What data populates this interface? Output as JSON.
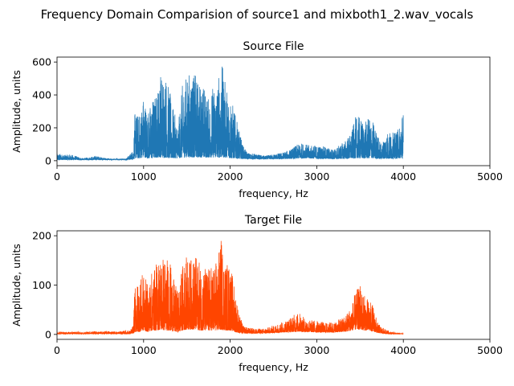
{
  "figure": {
    "suptitle": "Frequency Domain Comparision of source1 and mixboth1_2.wav_vocals"
  },
  "chart_data": [
    {
      "type": "line",
      "title": "Source File",
      "xlabel": "frequency, Hz",
      "ylabel": "Amplitude, units",
      "xlim": [
        0,
        5000
      ],
      "ylim": [
        -30,
        630
      ],
      "xticks": [
        0,
        1000,
        2000,
        3000,
        4000,
        5000
      ],
      "yticks": [
        0,
        200,
        400,
        600
      ],
      "grid": false,
      "color": "#1f77b4",
      "note_signal": "dense spectrum from 0 to 4000 Hz",
      "envelope": {
        "x": [
          0,
          20,
          100,
          150,
          300,
          450,
          600,
          800,
          850,
          880,
          900,
          950,
          1000,
          1050,
          1100,
          1150,
          1200,
          1250,
          1300,
          1350,
          1400,
          1450,
          1500,
          1550,
          1600,
          1650,
          1700,
          1750,
          1800,
          1850,
          1900,
          1950,
          2000,
          2050,
          2100,
          2150,
          2200,
          2300,
          2400,
          2500,
          2600,
          2700,
          2750,
          2800,
          2850,
          2900,
          3000,
          3100,
          3200,
          3300,
          3350,
          3400,
          3450,
          3500,
          3550,
          3600,
          3650,
          3700,
          3750,
          3800,
          3850,
          3900,
          3950,
          3980,
          4000
        ],
        "peak": [
          40,
          45,
          35,
          40,
          15,
          30,
          12,
          15,
          45,
          70,
          300,
          280,
          410,
          300,
          380,
          420,
          550,
          550,
          430,
          300,
          220,
          470,
          520,
          560,
          520,
          480,
          460,
          380,
          460,
          490,
          605,
          460,
          420,
          300,
          190,
          90,
          50,
          40,
          30,
          40,
          50,
          70,
          90,
          105,
          110,
          95,
          95,
          85,
          70,
          110,
          140,
          170,
          270,
          265,
          230,
          260,
          240,
          165,
          95,
          185,
          175,
          170,
          200,
          300,
          310
        ],
        "floor": [
          5,
          5,
          5,
          5,
          5,
          5,
          5,
          5,
          8,
          10,
          15,
          15,
          20,
          15,
          15,
          20,
          20,
          20,
          15,
          15,
          15,
          20,
          20,
          20,
          20,
          20,
          20,
          20,
          20,
          20,
          20,
          20,
          15,
          15,
          12,
          12,
          10,
          10,
          10,
          10,
          10,
          12,
          12,
          15,
          15,
          15,
          12,
          12,
          10,
          12,
          12,
          15,
          15,
          15,
          15,
          15,
          15,
          12,
          12,
          12,
          12,
          12,
          15,
          15,
          15
        ]
      }
    },
    {
      "type": "line",
      "title": "Target File",
      "xlabel": "frequency, Hz",
      "ylabel": "Amplitude, units",
      "xlim": [
        0,
        5000
      ],
      "ylim": [
        -10,
        210
      ],
      "xticks": [
        0,
        1000,
        2000,
        3000,
        4000,
        5000
      ],
      "yticks": [
        0,
        100,
        200
      ],
      "grid": false,
      "color": "#ff4500",
      "envelope": {
        "x": [
          0,
          100,
          200,
          300,
          400,
          500,
          600,
          700,
          800,
          850,
          880,
          900,
          950,
          1000,
          1050,
          1100,
          1150,
          1200,
          1250,
          1300,
          1350,
          1400,
          1450,
          1500,
          1550,
          1600,
          1650,
          1700,
          1750,
          1800,
          1850,
          1900,
          1950,
          2000,
          2050,
          2100,
          2150,
          2200,
          2300,
          2400,
          2500,
          2600,
          2700,
          2750,
          2800,
          2850,
          2900,
          3000,
          3100,
          3200,
          3300,
          3350,
          3400,
          3450,
          3500,
          3550,
          3600,
          3650,
          3700,
          3750,
          3800,
          3850,
          3900,
          3950,
          4000
        ],
        "peak": [
          6,
          5,
          6,
          5,
          7,
          6,
          7,
          6,
          8,
          8,
          20,
          100,
          110,
          125,
          100,
          130,
          145,
          168,
          160,
          152,
          110,
          85,
          145,
          158,
          155,
          160,
          145,
          140,
          135,
          145,
          150,
          198,
          150,
          145,
          100,
          45,
          18,
          14,
          12,
          12,
          18,
          25,
          35,
          42,
          44,
          35,
          30,
          28,
          24,
          25,
          35,
          45,
          60,
          88,
          100,
          80,
          70,
          60,
          25,
          15,
          10,
          6,
          4,
          3,
          2
        ],
        "floor": [
          1,
          1,
          1,
          1,
          1,
          1,
          1,
          1,
          1,
          1,
          2,
          5,
          5,
          8,
          5,
          8,
          8,
          10,
          8,
          8,
          6,
          5,
          8,
          10,
          10,
          10,
          8,
          8,
          8,
          8,
          8,
          10,
          8,
          8,
          5,
          3,
          2,
          2,
          2,
          2,
          3,
          4,
          5,
          5,
          6,
          5,
          5,
          4,
          4,
          4,
          5,
          6,
          8,
          10,
          10,
          8,
          8,
          6,
          3,
          2,
          1,
          1,
          1,
          1,
          1
        ]
      }
    }
  ]
}
